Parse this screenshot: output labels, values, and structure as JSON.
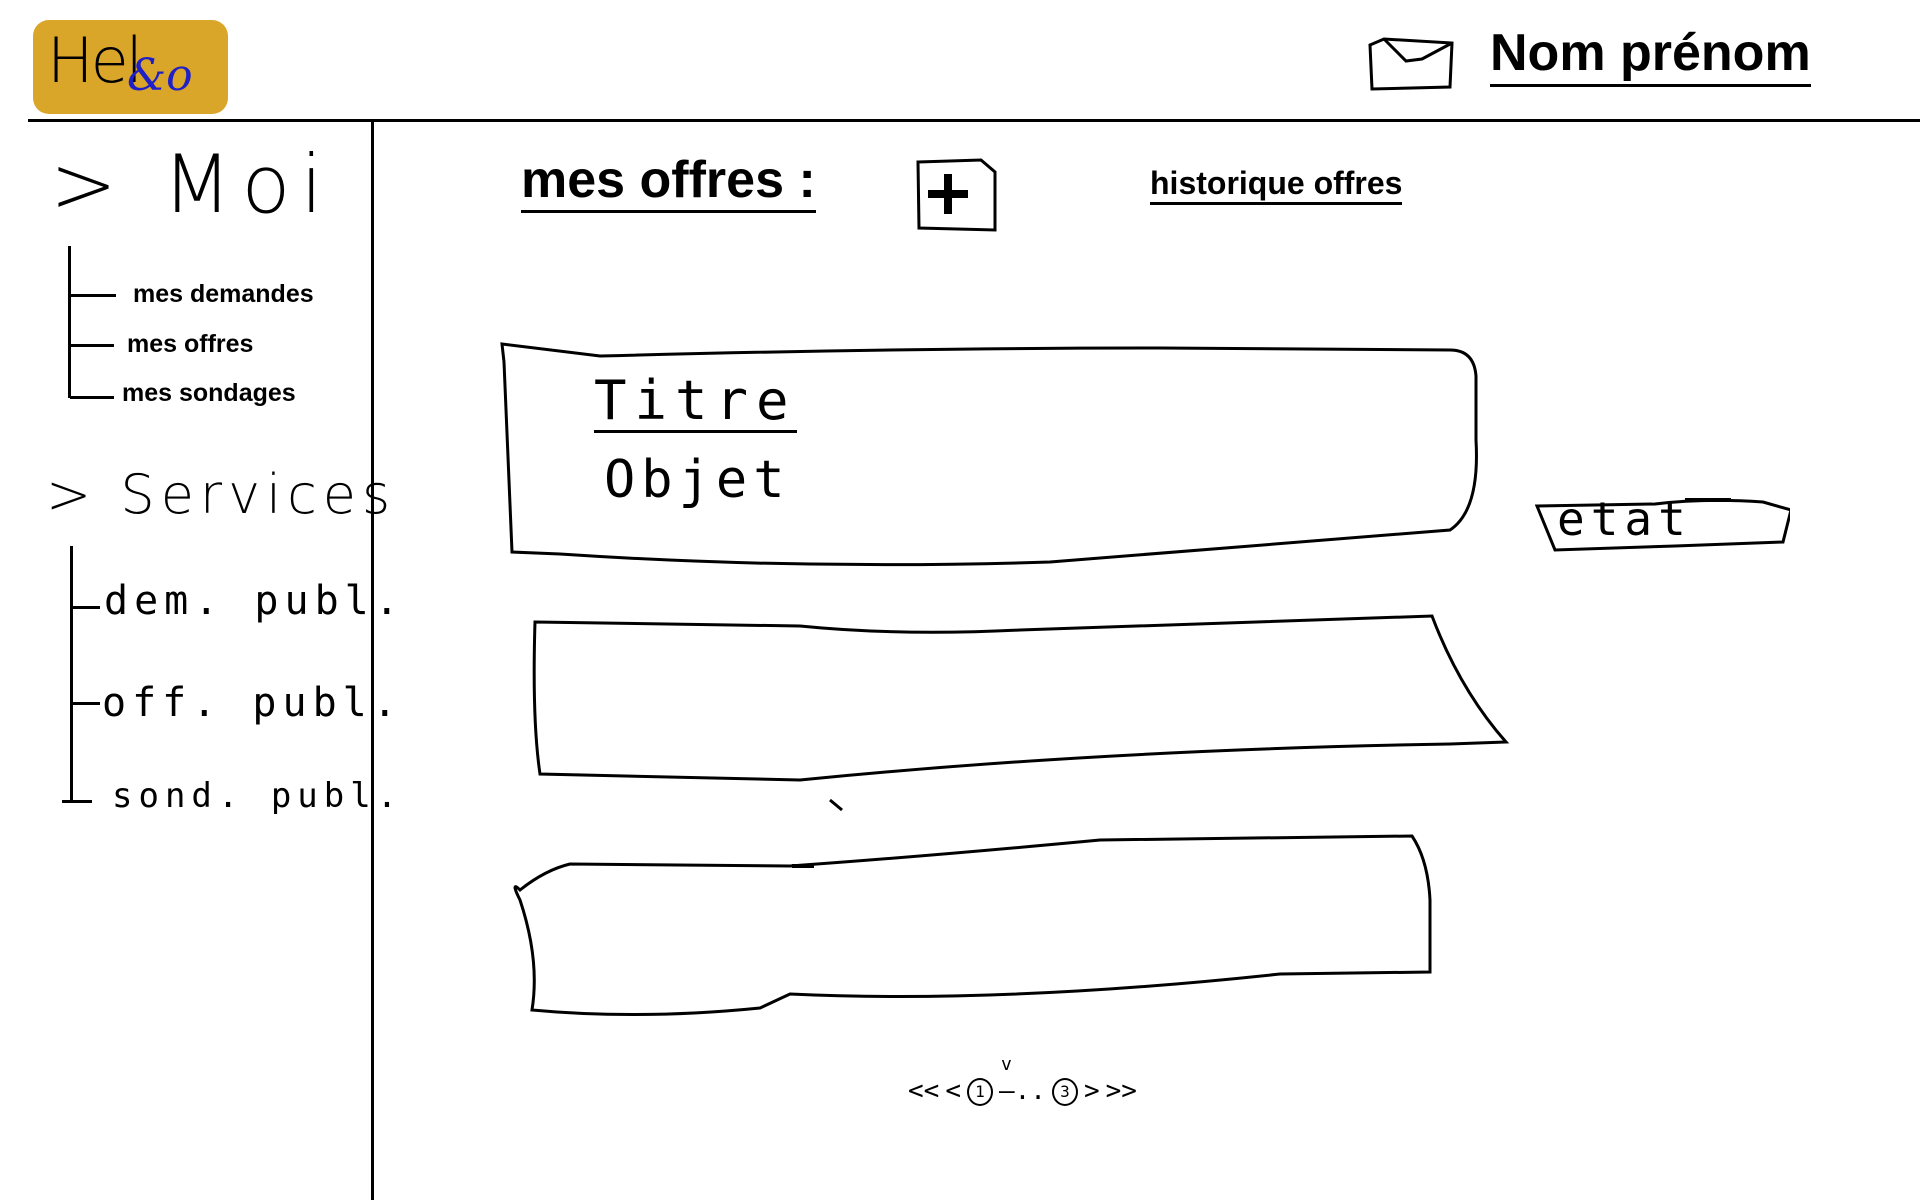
{
  "header": {
    "logo": {
      "text_main": "Hel",
      "text_accent": "&o"
    },
    "user_name": "Nom prénom",
    "icons": {
      "messages": "envelope-icon"
    }
  },
  "sidebar": {
    "moi": {
      "label": "Moi",
      "chevron": ">",
      "items": [
        {
          "label": "mes demandes"
        },
        {
          "label": "mes offres"
        },
        {
          "label": "mes sondages"
        }
      ]
    },
    "services": {
      "label": "Services",
      "chevron": ">",
      "items": [
        {
          "label": "dem. publ."
        },
        {
          "label": "off. publ."
        },
        {
          "label": "sond. publ."
        }
      ]
    }
  },
  "main": {
    "title": "mes offres :",
    "add_button_icon": "plus-icon",
    "history_link": "historique offres",
    "offers": [
      {
        "title": "Titre",
        "object": "Objet",
        "status": "etat"
      },
      {
        "title": "",
        "object": "",
        "status": ""
      },
      {
        "title": "",
        "object": "",
        "status": ""
      }
    ],
    "pagination": {
      "first": "<<",
      "prev": "<",
      "current_page": "1",
      "separator": "—..",
      "last_page": "3",
      "next": ">",
      "last": ">>",
      "current_marker": "v"
    }
  },
  "colors": {
    "logo_bg": "#d9a62a",
    "logo_accent": "#2020c8",
    "ink": "#000000",
    "background": "#ffffff"
  }
}
